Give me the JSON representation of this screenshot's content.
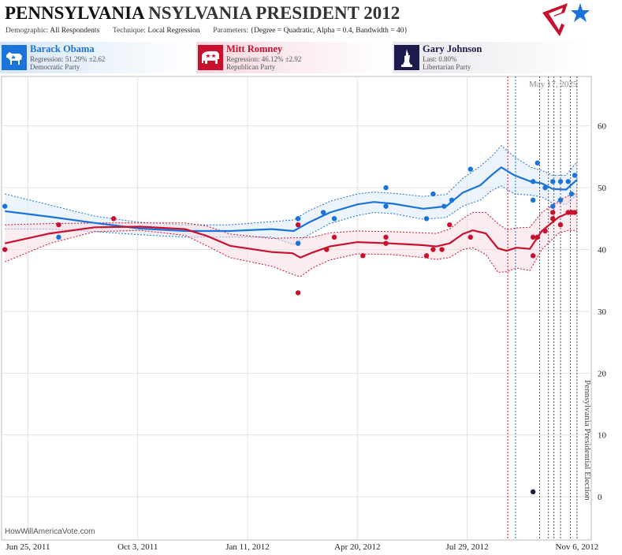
{
  "header": {
    "title_main": "PENNSYLVANIA",
    "title_rest": "NSYLVANIA PRESIDENT 2012",
    "demographic_label": "Demographic:",
    "demographic_value": "All Respondents",
    "technique_label": "Technique:",
    "technique_value": "Local Regression",
    "parameters_label": "Parameters:",
    "parameters_value": "{Degree = Quadratic, Alpha = 0.4, Bandwidth = 40}"
  },
  "candidates": [
    {
      "name": "Barack Obama",
      "stat": "Regression: 51.29% ±2.62",
      "party": "Democratic Party",
      "color": "#1a73d9",
      "icon": "donkey-icon"
    },
    {
      "name": "Mitt Romney",
      "stat": "Regression: 46.12% ±2.92",
      "party": "Republican Party",
      "color": "#c8102e",
      "icon": "elephant-icon"
    },
    {
      "name": "Gary Johnson",
      "stat": "Last: 0.80%",
      "party": "Libertarian Party",
      "color": "#1b1b4d",
      "icon": "liberty-statue-icon"
    }
  ],
  "date_stamp": "May 17, 2025",
  "watermark": "HowWillAmericaVote.com",
  "chart_data": {
    "type": "line",
    "ylim": [
      -7,
      68
    ],
    "xlim": [
      "2011-06-01",
      "2012-11-19"
    ],
    "y_ticks": [
      0,
      10,
      20,
      30,
      40,
      50,
      60
    ],
    "x_ticks": [
      {
        "label": "Jun 25, 2011",
        "date": "2011-06-25"
      },
      {
        "label": "Oct 3, 2011",
        "date": "2011-10-03"
      },
      {
        "label": "Jan 11, 2012",
        "date": "2012-01-11"
      },
      {
        "label": "Apr 20, 2012",
        "date": "2012-04-20"
      },
      {
        "label": "Jul 29, 2012",
        "date": "2012-07-29"
      },
      {
        "label": "Nov 6, 2012",
        "date": "2012-11-06"
      }
    ],
    "event_label": "Pennsylvania Presidential Election",
    "event_date": "2012-11-06",
    "event_lines": [
      {
        "date": "2012-09-04",
        "color": "#c8102e"
      },
      {
        "date": "2012-09-11",
        "color": "#1a73d9"
      },
      {
        "date": "2012-10-03",
        "color": "#555555"
      },
      {
        "date": "2012-10-11",
        "color": "#555555"
      },
      {
        "date": "2012-10-16",
        "color": "#555555"
      },
      {
        "date": "2012-10-22",
        "color": "#555555"
      },
      {
        "date": "2012-10-31",
        "color": "#555555"
      }
    ],
    "series": [
      {
        "name": "Barack Obama",
        "color": "#1a73d9",
        "band_fill": "#dce9f8",
        "trend": [
          [
            "2011-06-04",
            46.2
          ],
          [
            "2011-07-15",
            45.3
          ],
          [
            "2011-08-25",
            44.3
          ],
          [
            "2011-10-05",
            43.4
          ],
          [
            "2011-11-15",
            43.0
          ],
          [
            "2011-12-26",
            43.0
          ],
          [
            "2012-02-02",
            43.3
          ],
          [
            "2012-02-22",
            43.0
          ],
          [
            "2012-03-06",
            44.3
          ],
          [
            "2012-03-26",
            46.0
          ],
          [
            "2012-04-20",
            47.3
          ],
          [
            "2012-05-05",
            47.7
          ],
          [
            "2012-05-23",
            47.4
          ],
          [
            "2012-06-19",
            46.6
          ],
          [
            "2012-07-10",
            47.0
          ],
          [
            "2012-07-25",
            49.2
          ],
          [
            "2012-08-10",
            50.4
          ],
          [
            "2012-08-20",
            52.0
          ],
          [
            "2012-08-29",
            53.3
          ],
          [
            "2012-09-10",
            52.0
          ],
          [
            "2012-09-25",
            51.0
          ],
          [
            "2012-10-05",
            50.7
          ],
          [
            "2012-10-15",
            49.8
          ],
          [
            "2012-10-27",
            49.7
          ],
          [
            "2012-11-06",
            51.3
          ]
        ],
        "upper": [
          [
            "2011-06-04",
            49.0
          ],
          [
            "2011-07-15",
            47.2
          ],
          [
            "2011-08-25",
            45.4
          ],
          [
            "2011-10-05",
            44.4
          ],
          [
            "2011-11-15",
            44.0
          ],
          [
            "2011-12-26",
            44.0
          ],
          [
            "2012-02-02",
            44.5
          ],
          [
            "2012-02-22",
            44.8
          ],
          [
            "2012-03-06",
            46.2
          ],
          [
            "2012-03-26",
            47.8
          ],
          [
            "2012-04-20",
            49.0
          ],
          [
            "2012-05-05",
            49.3
          ],
          [
            "2012-05-23",
            49.1
          ],
          [
            "2012-06-19",
            48.6
          ],
          [
            "2012-07-10",
            48.9
          ],
          [
            "2012-07-25",
            51.5
          ],
          [
            "2012-08-10",
            53.5
          ],
          [
            "2012-08-20",
            55.0
          ],
          [
            "2012-08-29",
            56.8
          ],
          [
            "2012-09-10",
            55.0
          ],
          [
            "2012-09-25",
            53.3
          ],
          [
            "2012-10-05",
            52.8
          ],
          [
            "2012-10-15",
            52.0
          ],
          [
            "2012-10-27",
            52.0
          ],
          [
            "2012-11-06",
            54.2
          ]
        ],
        "lower": [
          [
            "2011-06-04",
            43.3
          ],
          [
            "2011-07-15",
            43.3
          ],
          [
            "2011-08-25",
            42.9
          ],
          [
            "2011-10-05",
            42.4
          ],
          [
            "2011-11-15",
            42.0
          ],
          [
            "2011-12-26",
            42.0
          ],
          [
            "2012-02-02",
            42.0
          ],
          [
            "2012-02-22",
            40.8
          ],
          [
            "2012-03-06",
            42.3
          ],
          [
            "2012-03-26",
            44.2
          ],
          [
            "2012-04-20",
            45.5
          ],
          [
            "2012-05-05",
            46.0
          ],
          [
            "2012-05-23",
            45.8
          ],
          [
            "2012-06-19",
            44.9
          ],
          [
            "2012-07-10",
            45.2
          ],
          [
            "2012-07-25",
            47.0
          ],
          [
            "2012-08-10",
            48.0
          ],
          [
            "2012-08-20",
            49.5
          ],
          [
            "2012-08-29",
            50.3
          ],
          [
            "2012-09-10",
            49.0
          ],
          [
            "2012-09-25",
            48.8
          ],
          [
            "2012-10-05",
            48.5
          ],
          [
            "2012-10-15",
            47.5
          ],
          [
            "2012-10-27",
            47.3
          ],
          [
            "2012-11-06",
            48.8
          ]
        ],
        "polls": [
          [
            "2011-06-04",
            47
          ],
          [
            "2011-07-23",
            42
          ],
          [
            "2012-02-26",
            45
          ],
          [
            "2012-02-26",
            41
          ],
          [
            "2012-03-20",
            46
          ],
          [
            "2012-03-30",
            45
          ],
          [
            "2012-05-16",
            50
          ],
          [
            "2012-05-16",
            47
          ],
          [
            "2012-06-22",
            45
          ],
          [
            "2012-06-28",
            49
          ],
          [
            "2012-07-08",
            47
          ],
          [
            "2012-07-15",
            48
          ],
          [
            "2012-08-01",
            53
          ],
          [
            "2012-09-27",
            48
          ],
          [
            "2012-09-27",
            51
          ],
          [
            "2012-10-01",
            54
          ],
          [
            "2012-10-08",
            50
          ],
          [
            "2012-10-15",
            47
          ],
          [
            "2012-10-15",
            51
          ],
          [
            "2012-10-22",
            48
          ],
          [
            "2012-10-22",
            51
          ],
          [
            "2012-10-29",
            51
          ],
          [
            "2012-11-01",
            49
          ],
          [
            "2012-11-04",
            52
          ]
        ]
      },
      {
        "name": "Mitt Romney",
        "color": "#c8102e",
        "band_fill": "#f6dce2",
        "trend": [
          [
            "2011-06-04",
            41.0
          ],
          [
            "2011-07-15",
            42.6
          ],
          [
            "2011-08-25",
            43.6
          ],
          [
            "2011-10-05",
            43.7
          ],
          [
            "2011-11-15",
            43.3
          ],
          [
            "2011-12-05",
            42.2
          ],
          [
            "2011-12-26",
            40.6
          ],
          [
            "2012-02-02",
            39.6
          ],
          [
            "2012-02-21",
            39.4
          ],
          [
            "2012-02-28",
            38.7
          ],
          [
            "2012-03-10",
            39.5
          ],
          [
            "2012-03-26",
            40.5
          ],
          [
            "2012-04-20",
            41.2
          ],
          [
            "2012-05-20",
            41.0
          ],
          [
            "2012-06-19",
            40.7
          ],
          [
            "2012-07-01",
            40.5
          ],
          [
            "2012-07-13",
            41.0
          ],
          [
            "2012-07-25",
            42.5
          ],
          [
            "2012-08-03",
            43.1
          ],
          [
            "2012-08-15",
            42.6
          ],
          [
            "2012-08-26",
            40.2
          ],
          [
            "2012-09-03",
            39.8
          ],
          [
            "2012-09-12",
            40.3
          ],
          [
            "2012-09-24",
            40.1
          ],
          [
            "2012-10-05",
            43.0
          ],
          [
            "2012-10-20",
            45.2
          ],
          [
            "2012-10-29",
            45.9
          ],
          [
            "2012-11-06",
            46.1
          ]
        ],
        "upper": [
          [
            "2011-06-04",
            44.0
          ],
          [
            "2011-07-15",
            44.2
          ],
          [
            "2011-08-25",
            44.3
          ],
          [
            "2011-10-05",
            44.3
          ],
          [
            "2011-11-15",
            44.3
          ],
          [
            "2011-12-05",
            43.8
          ],
          [
            "2011-12-26",
            42.5
          ],
          [
            "2012-02-02",
            41.8
          ],
          [
            "2012-02-21",
            41.9
          ],
          [
            "2012-02-28",
            41.9
          ],
          [
            "2012-03-10",
            42.0
          ],
          [
            "2012-03-26",
            42.7
          ],
          [
            "2012-04-20",
            43.0
          ],
          [
            "2012-05-20",
            42.9
          ],
          [
            "2012-06-19",
            42.7
          ],
          [
            "2012-07-01",
            42.6
          ],
          [
            "2012-07-13",
            43.3
          ],
          [
            "2012-07-25",
            45.0
          ],
          [
            "2012-08-03",
            46.0
          ],
          [
            "2012-08-15",
            46.0
          ],
          [
            "2012-08-26",
            44.2
          ],
          [
            "2012-09-03",
            43.2
          ],
          [
            "2012-09-12",
            43.5
          ],
          [
            "2012-09-24",
            43.6
          ],
          [
            "2012-10-05",
            46.0
          ],
          [
            "2012-10-20",
            47.8
          ],
          [
            "2012-10-29",
            48.7
          ],
          [
            "2012-11-06",
            49.1
          ]
        ],
        "lower": [
          [
            "2011-06-04",
            38.0
          ],
          [
            "2011-07-15",
            41.0
          ],
          [
            "2011-08-25",
            42.9
          ],
          [
            "2011-10-05",
            43.1
          ],
          [
            "2011-11-15",
            42.3
          ],
          [
            "2011-12-05",
            40.6
          ],
          [
            "2011-12-26",
            38.7
          ],
          [
            "2012-02-02",
            37.3
          ],
          [
            "2012-02-21",
            36.0
          ],
          [
            "2012-02-28",
            35.6
          ],
          [
            "2012-03-10",
            37.0
          ],
          [
            "2012-03-26",
            38.3
          ],
          [
            "2012-04-20",
            39.3
          ],
          [
            "2012-05-20",
            39.2
          ],
          [
            "2012-06-19",
            38.7
          ],
          [
            "2012-07-01",
            38.4
          ],
          [
            "2012-07-13",
            38.7
          ],
          [
            "2012-07-25",
            40.0
          ],
          [
            "2012-08-03",
            40.3
          ],
          [
            "2012-08-15",
            39.2
          ],
          [
            "2012-08-26",
            36.3
          ],
          [
            "2012-09-03",
            36.4
          ],
          [
            "2012-09-12",
            37.0
          ],
          [
            "2012-09-24",
            36.6
          ],
          [
            "2012-10-05",
            40.0
          ],
          [
            "2012-10-20",
            42.6
          ],
          [
            "2012-10-29",
            43.1
          ],
          [
            "2012-11-06",
            43.1
          ]
        ],
        "polls": [
          [
            "2011-06-04",
            40
          ],
          [
            "2011-07-23",
            44
          ],
          [
            "2011-09-11",
            45
          ],
          [
            "2012-02-26",
            33
          ],
          [
            "2012-02-26",
            44
          ],
          [
            "2012-03-23",
            40
          ],
          [
            "2012-03-30",
            42
          ],
          [
            "2012-04-25",
            39
          ],
          [
            "2012-05-16",
            42
          ],
          [
            "2012-05-16",
            41
          ],
          [
            "2012-06-22",
            39
          ],
          [
            "2012-06-28",
            40
          ],
          [
            "2012-07-06",
            40
          ],
          [
            "2012-07-13",
            44
          ],
          [
            "2012-08-01",
            42
          ],
          [
            "2012-09-27",
            42
          ],
          [
            "2012-09-27",
            39
          ],
          [
            "2012-10-01",
            42
          ],
          [
            "2012-10-08",
            43
          ],
          [
            "2012-10-15",
            45
          ],
          [
            "2012-10-15",
            46
          ],
          [
            "2012-10-22",
            44
          ],
          [
            "2012-10-29",
            46
          ],
          [
            "2012-11-01",
            46
          ],
          [
            "2012-11-04",
            46
          ]
        ]
      },
      {
        "name": "Gary Johnson",
        "color": "#1b1b4d",
        "polls": [
          [
            "2012-09-27",
            0.8
          ]
        ]
      }
    ]
  }
}
